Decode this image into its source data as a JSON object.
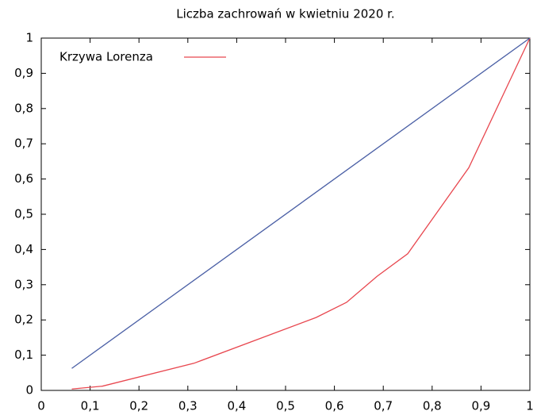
{
  "chart_data": {
    "type": "line",
    "title": "Liczba zachrowań w kwietniu 2020 r.",
    "series": [
      {
        "name": "Krzywa Lorenza",
        "color": "#e8474f",
        "x": [
          0.0625,
          0.125,
          0.3125,
          0.5625,
          0.625,
          0.6875,
          0.75,
          0.875,
          1
        ],
        "values": [
          0.004,
          0.012,
          0.077,
          0.207,
          0.25,
          0.324,
          0.388,
          0.632,
          1
        ]
      },
      {
        "color": "#4a5fa5",
        "x": [
          0.0625,
          1
        ],
        "values": [
          0.0625,
          1
        ]
      }
    ],
    "xlim": [
      0,
      1
    ],
    "xticks": [
      0,
      {
        "value": 0.1,
        "label": "0,1"
      },
      {
        "value": 0.2,
        "label": "0,2"
      },
      {
        "value": 0.3,
        "label": "0,3"
      },
      {
        "value": 0.4,
        "label": "0,4"
      },
      {
        "value": 0.5,
        "label": "0,5"
      },
      {
        "value": 0.6,
        "label": "0,6"
      },
      {
        "value": 0.7,
        "label": "0,7"
      },
      {
        "value": 0.8,
        "label": "0,8"
      },
      {
        "value": 0.9,
        "label": "0,9"
      },
      1
    ],
    "ylim": [
      0,
      1
    ],
    "yticks": [
      0,
      {
        "value": 0.1,
        "label": "0,1"
      },
      {
        "value": 0.2,
        "label": "0,2"
      },
      {
        "value": 0.3,
        "label": "0,3"
      },
      {
        "value": 0.4,
        "label": "0,4"
      },
      {
        "value": 0.5,
        "label": "0,5"
      },
      {
        "value": 0.6,
        "label": "0,6"
      },
      {
        "value": 0.7,
        "label": "0,7"
      },
      {
        "value": 0.8,
        "label": "0,8"
      },
      {
        "value": 0.9,
        "label": "0,9"
      },
      1
    ],
    "grid": false,
    "legend": "top-left"
  }
}
